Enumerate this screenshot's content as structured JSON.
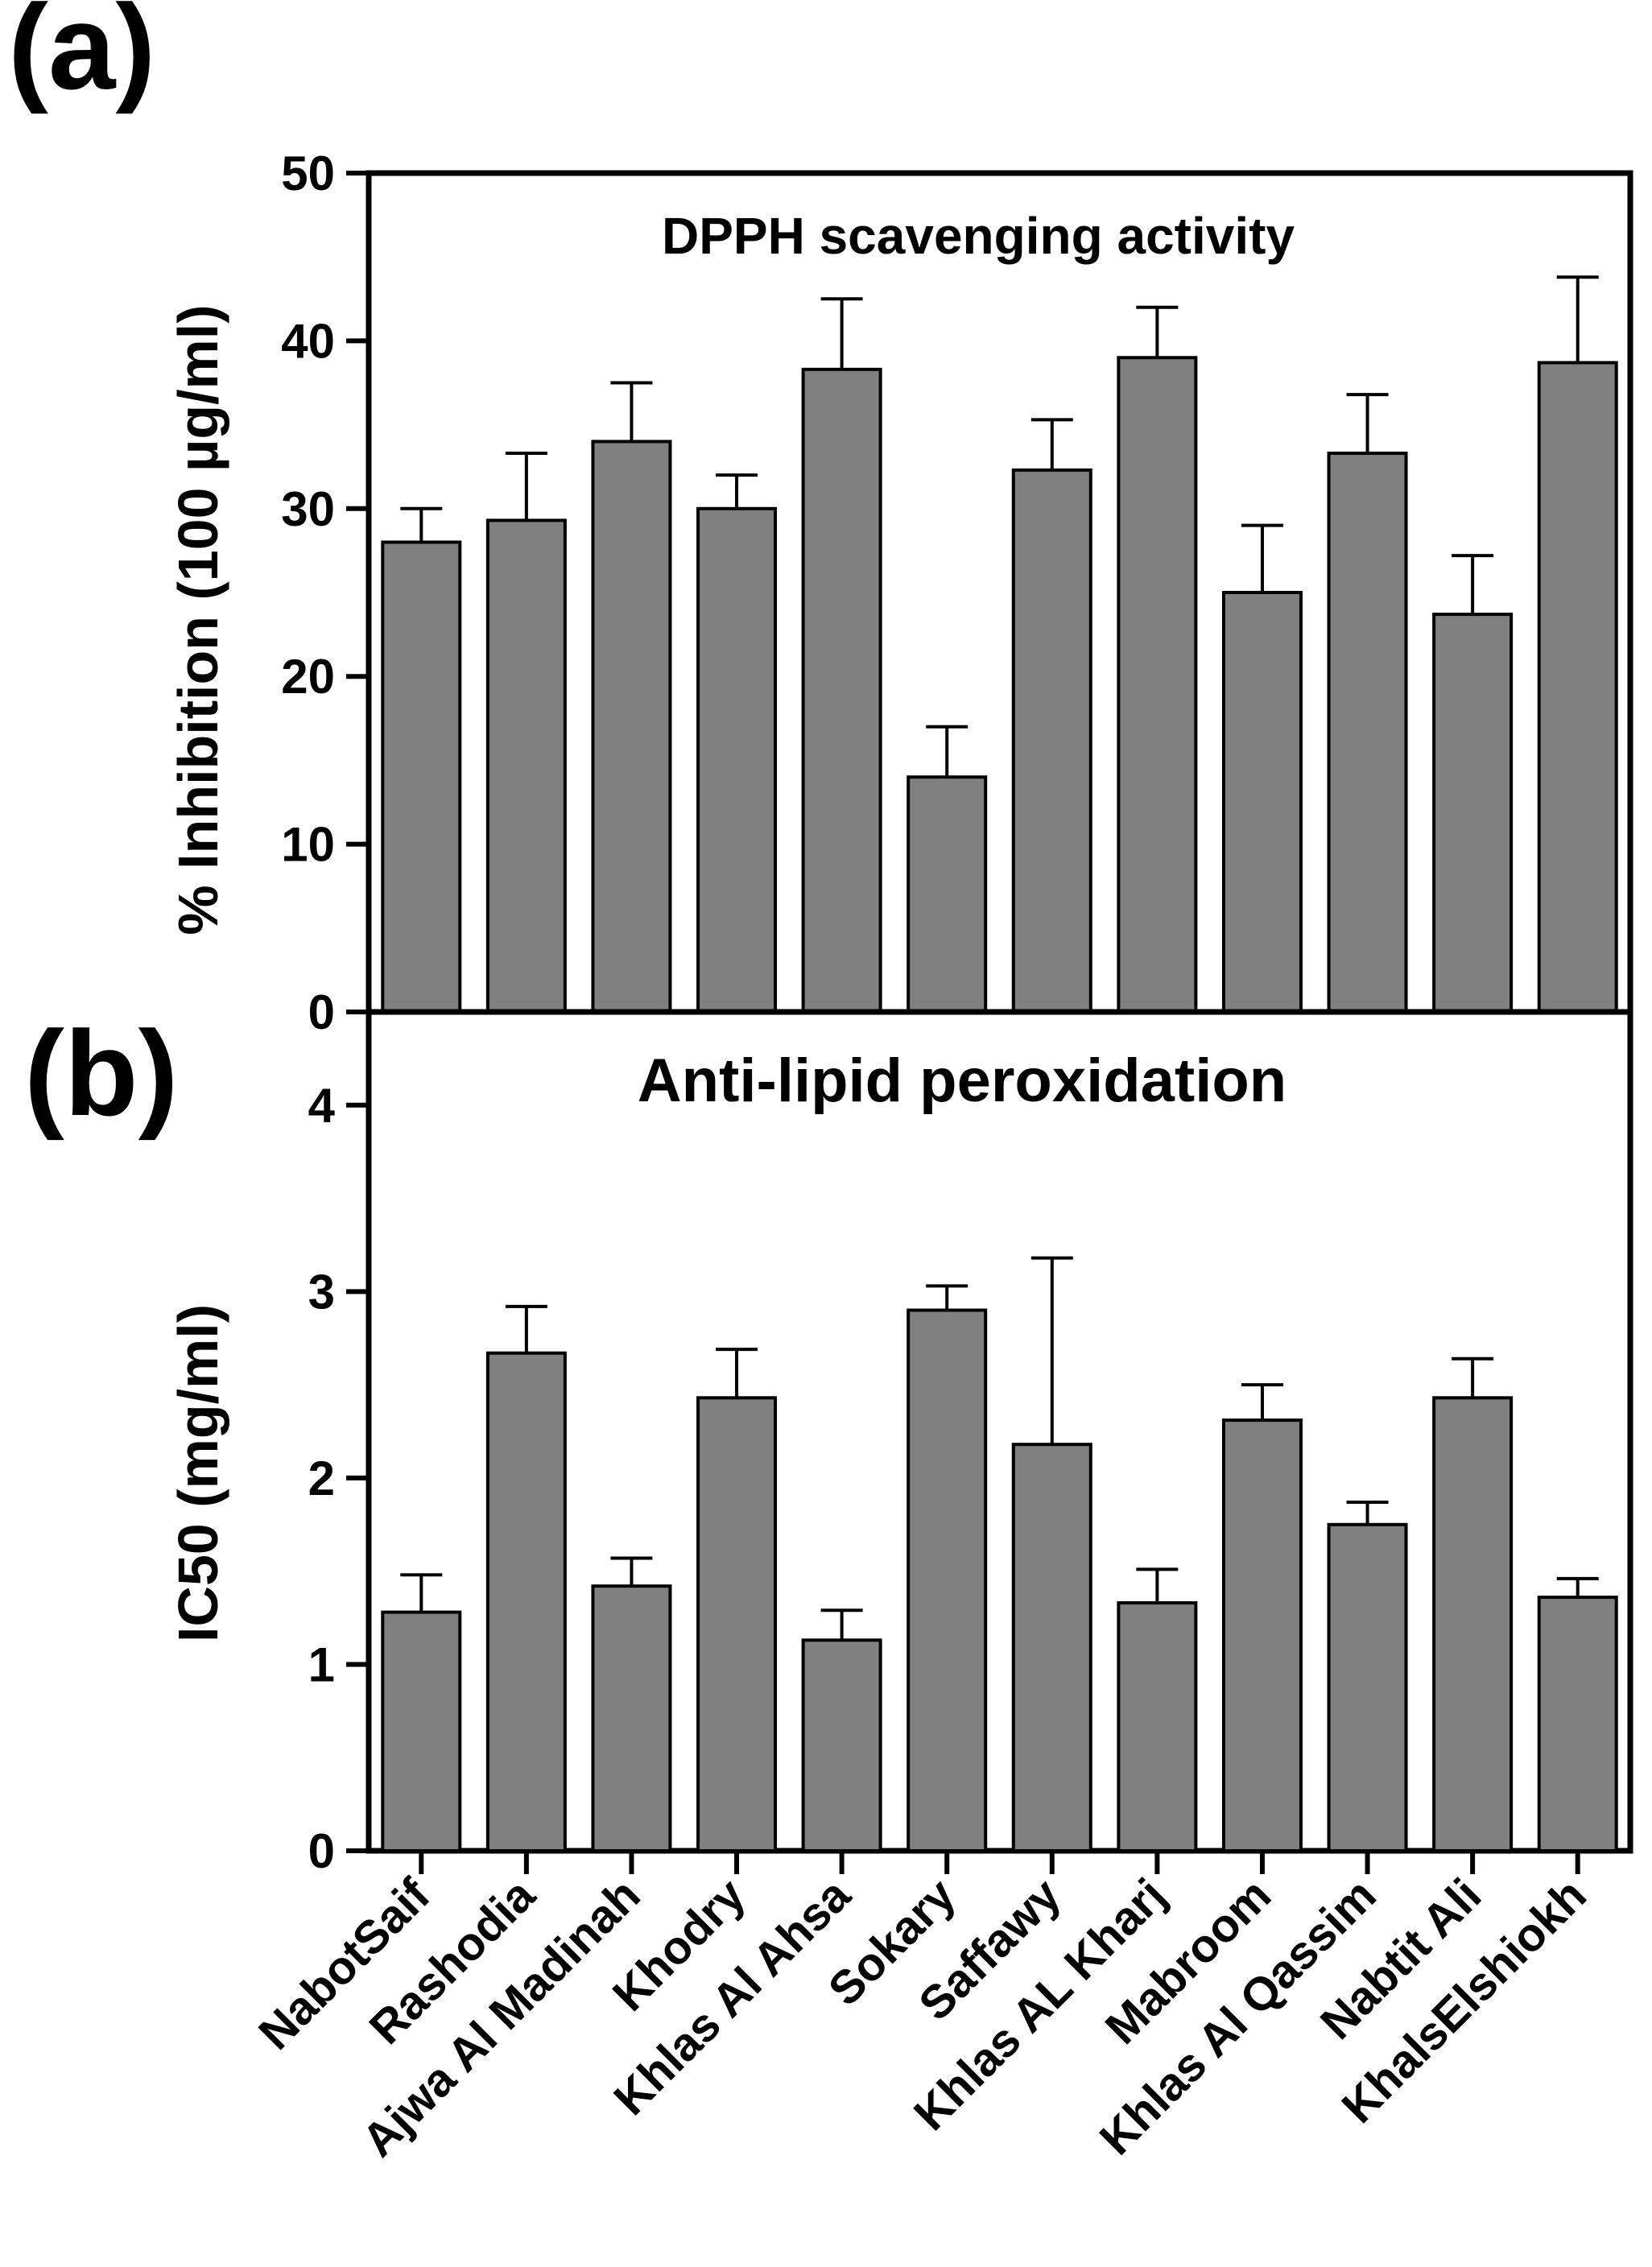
{
  "figure": {
    "panel_a_letter": "(a)",
    "panel_b_letter": "(b)"
  },
  "chart_data": [
    {
      "type": "bar",
      "title": "DPPH scavenging activity",
      "xlabel": "",
      "ylabel": "% Inhibition (100 µg/ml)",
      "ylim": [
        0,
        50
      ],
      "yticks": [
        "0",
        "10",
        "20",
        "30",
        "40",
        "50"
      ],
      "categories": [
        "NabotSaif",
        "Rashodia",
        "Ajwa Al Madinah",
        "Khodry",
        "Khlas Al Ahsa",
        "Sokary",
        "Saffawy",
        "Khlas AL Kharj",
        "Mabroom",
        "Khlas Al Qassim",
        "Nabtit Ali",
        "KhalsElshiokh"
      ],
      "values": [
        28.0,
        29.3,
        34.0,
        30.0,
        38.3,
        14.0,
        32.3,
        39.0,
        25.0,
        33.3,
        23.7,
        38.7
      ],
      "errors": [
        2.0,
        4.0,
        3.5,
        2.0,
        4.2,
        3.0,
        3.0,
        3.0,
        4.0,
        3.5,
        3.5,
        5.1
      ],
      "bar_color": "#808080",
      "grid": false,
      "legend": "none"
    },
    {
      "type": "bar",
      "title": "Anti-lipid peroxidation",
      "xlabel": "",
      "ylabel": "IC50 (mg/ml)",
      "ylim": [
        0,
        4.5
      ],
      "yticks": [
        "0",
        "1",
        "2",
        "3",
        "4"
      ],
      "categories": [
        "NabotSaif",
        "Rashodia",
        "Ajwa Al Madinah",
        "Khodry",
        "Khlas Al Ahsa",
        "Sokary",
        "Saffawy",
        "Khlas AL Kharj",
        "Mabroom",
        "Khlas Al Qassim",
        "Nabtit Ali",
        "KhalsElshiokh"
      ],
      "values": [
        1.28,
        2.67,
        1.42,
        2.43,
        1.13,
        2.9,
        2.18,
        1.33,
        2.31,
        1.75,
        2.43,
        1.36
      ],
      "errors": [
        0.2,
        0.25,
        0.15,
        0.26,
        0.16,
        0.13,
        1.0,
        0.18,
        0.19,
        0.12,
        0.21,
        0.1
      ],
      "bar_color": "#808080",
      "grid": false,
      "legend": "none"
    }
  ]
}
